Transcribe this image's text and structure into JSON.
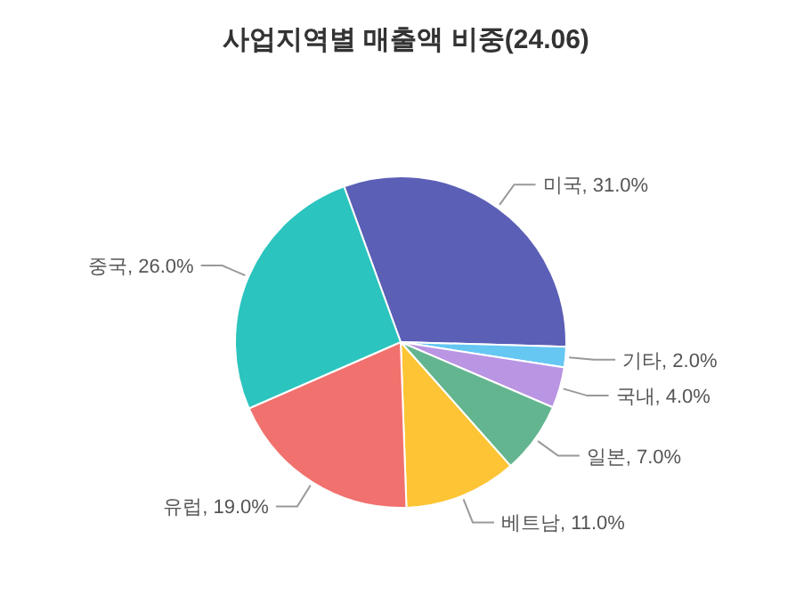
{
  "chart_data": {
    "type": "pie",
    "title": "사업지역별 매출액 비중(24.06)",
    "categories": [
      "미국",
      "기타",
      "국내",
      "일본",
      "베트남",
      "유럽",
      "중국"
    ],
    "values": [
      31,
      2,
      4,
      7,
      11,
      19,
      26
    ],
    "value_labels": [
      "31.0%",
      "2.0%",
      "4.0%",
      "7.0%",
      "11.0%",
      "19.0%",
      "26.0%"
    ],
    "colors": [
      "#5b5fb6",
      "#66c7f2",
      "#b995e3",
      "#63b58f",
      "#fdc535",
      "#f1716e",
      "#2bc4be"
    ]
  }
}
